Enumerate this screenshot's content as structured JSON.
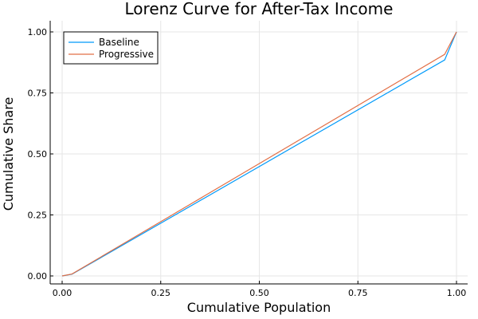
{
  "chart_data": {
    "type": "line",
    "title": "Lorenz Curve for After-Tax Income",
    "xlabel": "Cumulative Population",
    "ylabel": "Cumulative Share",
    "xlim": [
      0,
      1
    ],
    "ylim": [
      0,
      1
    ],
    "xticks": [
      0,
      0.25,
      0.5,
      0.75,
      1
    ],
    "xtick_labels": [
      "0.00",
      "0.25",
      "0.50",
      "0.75",
      "1.00"
    ],
    "yticks": [
      0,
      0.25,
      0.5,
      0.75,
      1
    ],
    "ytick_labels": [
      "0.00",
      "0.25",
      "0.50",
      "0.75",
      "1.00"
    ],
    "grid": true,
    "legend_position": "top-left",
    "series": [
      {
        "name": "Baseline",
        "color": "#009AFA",
        "x": [
          0,
          0.025,
          0.97,
          1
        ],
        "y": [
          0,
          0.007,
          0.885,
          1
        ]
      },
      {
        "name": "Progressive",
        "color": "#E26F46",
        "x": [
          0,
          0.025,
          0.97,
          1
        ],
        "y": [
          0,
          0.008,
          0.908,
          1
        ]
      }
    ]
  }
}
